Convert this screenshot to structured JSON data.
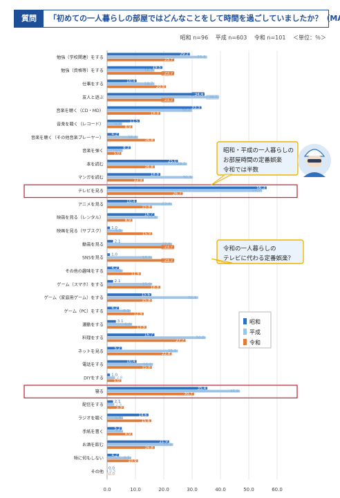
{
  "header": {
    "tag": "質問",
    "title": "「初めての一人暮らしの部屋ではどんなことをして時間を過ごしていましたか？（MA）」"
  },
  "counts": {
    "showa": "昭和 n=96",
    "heisei": "平成 n=603",
    "reiwa": "令和 n=101",
    "unit": "＜単位：％＞"
  },
  "colors": {
    "showa": "#2e6fbf",
    "heisei": "#9dc3e6",
    "reiwa": "#e07b39",
    "highlight": "#c0303b"
  },
  "chart_data": {
    "type": "bar",
    "orientation": "horizontal",
    "categories": [
      "勉強（学校関連）をする",
      "勉強（資格等）をする",
      "仕事をする",
      "友人と遊ぶ",
      "音楽を聴く（CD・MD）",
      "音楽を聴く（レコード）",
      "音楽を聴く（その他音楽プレーヤー）",
      "音楽を弾く",
      "本を読む",
      "マンガを読む",
      "テレビを見る",
      "アニメを見る",
      "映画を見る（レンタル）",
      "映画を見る（サブスク）",
      "動画を見る",
      "SNSを見る",
      "その他の趣味をする",
      "ゲーム（スマホ）をする",
      "ゲーム（家庭用ゲーム）をする",
      "ゲーム（PC）をする",
      "運動をする",
      "料理をする",
      "ネットを見る",
      "電話をする",
      "DIYをする",
      "寝る",
      "配信をする",
      "ラジオを聴く",
      "手紙を書く",
      "お酒を飲む",
      "特に何もしない",
      "その他"
    ],
    "series": [
      {
        "name": "昭和",
        "values": [
          29.2,
          19.5,
          10.4,
          34.4,
          33.3,
          11.5,
          4.2,
          8.3,
          25.0,
          18.8,
          56.3,
          10.4,
          16.7,
          1.0,
          2.1,
          1.0,
          4.2,
          2.1,
          15.6,
          4.2,
          3.1,
          16.7,
          5.2,
          10.4,
          1.0,
          35.4,
          2.1,
          14.6,
          5.2,
          21.9,
          4.2,
          0.0
        ]
      },
      {
        "name": "平成",
        "values": [
          35.3,
          16.7,
          16.7,
          39.5,
          30.0,
          5.3,
          10.9,
          5.5,
          28.2,
          30.3,
          54.7,
          22.9,
          17.9,
          5.5,
          22.9,
          15.9,
          5.5,
          15.9,
          32.1,
          8.3,
          8.8,
          34.8,
          25.0,
          16.2,
          2.8,
          46.9,
          2.5,
          5.6,
          5.6,
          23.3,
          8.5,
          0.3
        ]
      },
      {
        "name": "令和",
        "values": [
          23.7,
          23.7,
          20.8,
          23.7,
          18.8,
          8.9,
          16.8,
          5.0,
          16.8,
          12.9,
          26.7,
          15.8,
          8.9,
          15.9,
          23.7,
          23.7,
          11.9,
          18.8,
          15.8,
          12.9,
          13.9,
          27.7,
          22.8,
          15.8,
          5.0,
          30.7,
          5.9,
          15.6,
          8.9,
          16.8,
          10.9,
          0.0
        ]
      }
    ],
    "xlim": [
      0,
      60
    ],
    "xticks": [
      "0.0",
      "10.0",
      "20.0",
      "30.0",
      "40.0",
      "50.0",
      "60.0"
    ],
    "legend_position": "right",
    "highlighted_categories": [
      "テレビを見る",
      "寝る"
    ],
    "boxed_values": [
      {
        "category": "勉強（資格等）をする",
        "series": "令和"
      },
      {
        "category": "友人と遊ぶ",
        "series": "昭和"
      },
      {
        "category": "友人と遊ぶ",
        "series": "平成"
      },
      {
        "category": "友人と遊ぶ",
        "series": "令和"
      },
      {
        "category": "動画を見る",
        "series": "令和"
      },
      {
        "category": "SNSを見る",
        "series": "令和"
      }
    ]
  },
  "annotations": [
    {
      "lines": [
        "昭和・平成の一人暮らしの",
        "お部屋時間の定番娯楽",
        "令和では半数"
      ]
    },
    {
      "lines": [
        "令和の一人暮らしの",
        "テレビに代わる定番娯楽？"
      ]
    }
  ],
  "mascot": {
    "icon": "mascot-icon"
  }
}
